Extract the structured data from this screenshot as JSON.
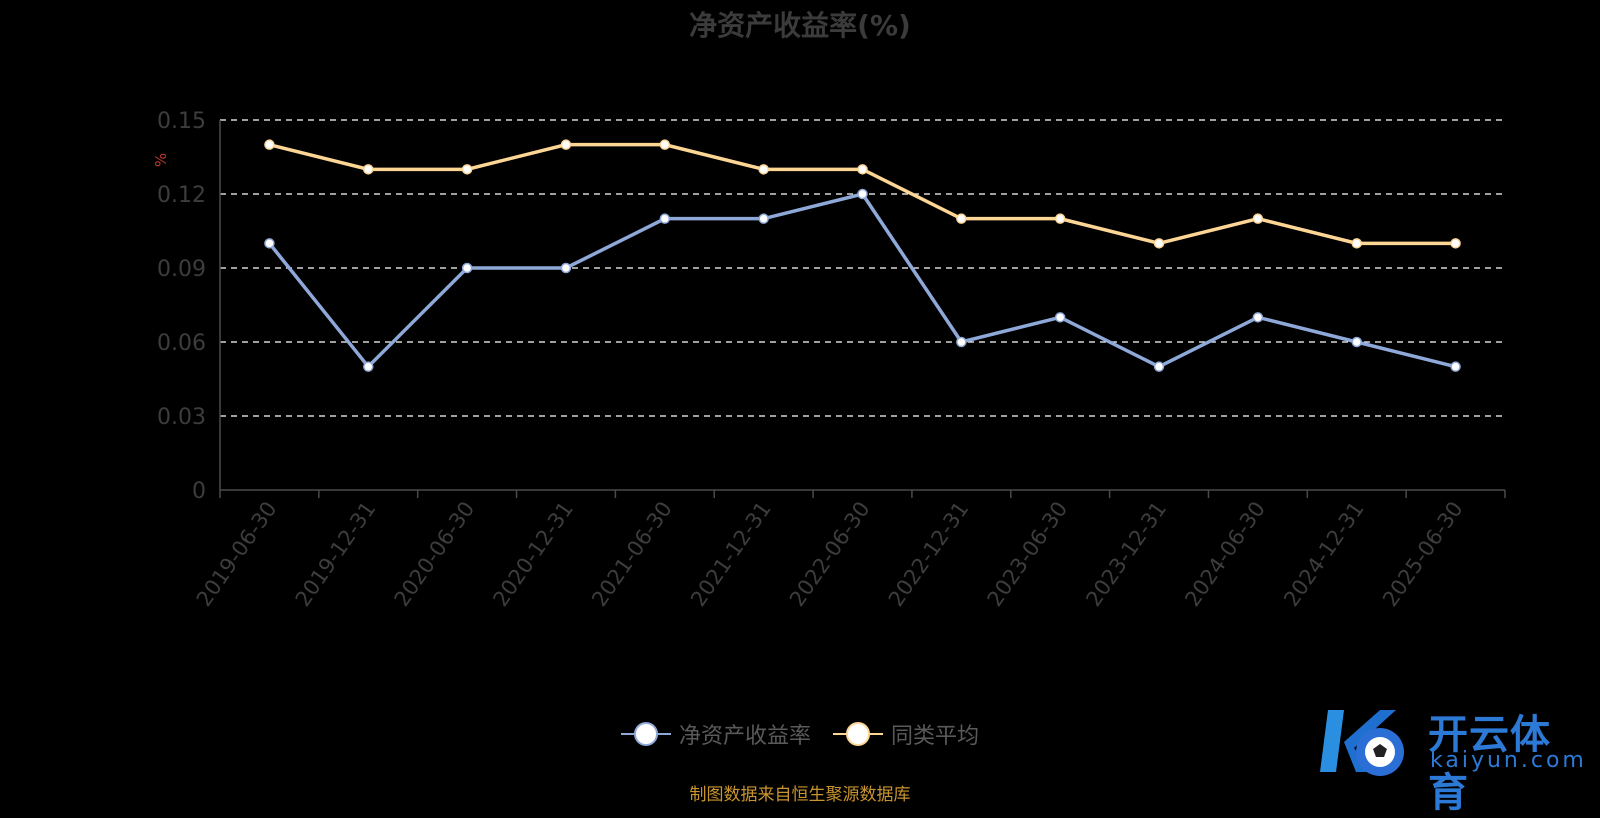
{
  "chart_data": {
    "type": "line",
    "title": "净资产收益率(%)",
    "ylabel": "%",
    "xlabel": "",
    "ylim": [
      0,
      0.15
    ],
    "yticks": [
      "0",
      "0.03",
      "0.06",
      "0.09",
      "0.12",
      "0.15"
    ],
    "yticks_values": [
      0,
      0.03,
      0.06,
      0.09,
      0.12,
      0.15
    ],
    "grid": true,
    "legend_position": "bottom-center",
    "categories": [
      "2019-06-30",
      "2019-12-31",
      "2020-06-30",
      "2020-12-31",
      "2021-06-30",
      "2021-12-31",
      "2022-06-30",
      "2022-12-31",
      "2023-06-30",
      "2023-12-31",
      "2024-06-30",
      "2024-12-31",
      "2025-06-30"
    ],
    "series": [
      {
        "name": "净资产收益率",
        "color": "#8ea8d8",
        "values": [
          0.1,
          0.05,
          0.09,
          0.09,
          0.11,
          0.11,
          0.12,
          0.06,
          0.07,
          0.05,
          0.07,
          0.06,
          0.05
        ]
      },
      {
        "name": "同类平均",
        "color": "#fdd595",
        "values": [
          0.14,
          0.13,
          0.13,
          0.14,
          0.14,
          0.13,
          0.13,
          0.11,
          0.11,
          0.1,
          0.11,
          0.1,
          0.1
        ]
      }
    ]
  },
  "source_note": "制图数据来自恒生聚源数据库",
  "logo": {
    "name": "开云体育",
    "sub": "kaiyun.com",
    "icon": "ko-soccer-logo-icon"
  }
}
